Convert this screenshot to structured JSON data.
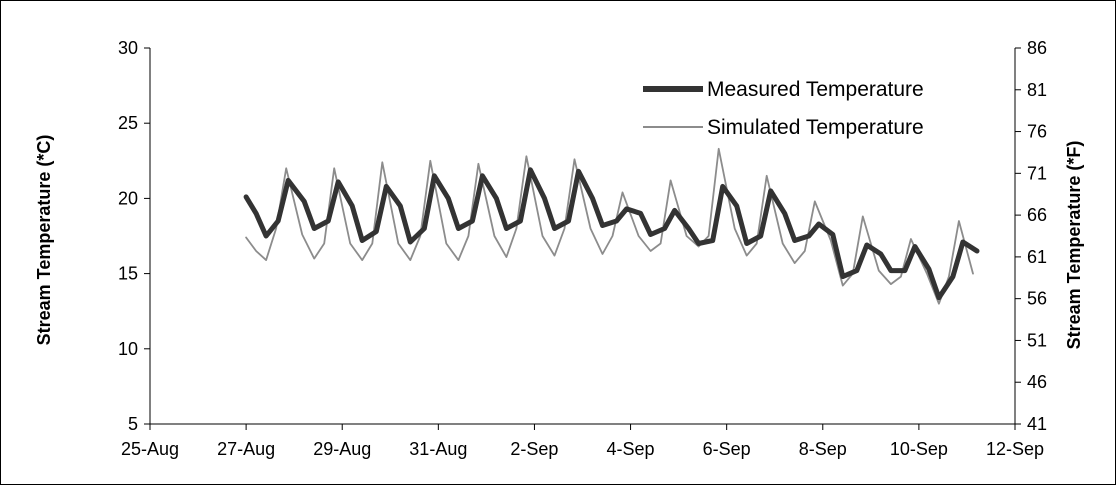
{
  "chart_data": {
    "type": "line",
    "title": "",
    "ylabel": "Stream Temperature (*C)",
    "y2label": "Stream Temperature (*F)",
    "xlim_days": [
      0,
      18
    ],
    "ylim": [
      5,
      30
    ],
    "y2lim": [
      41,
      86
    ],
    "grid": false,
    "legend_position": "top-right",
    "x_ticks": [
      "25-Aug",
      "27-Aug",
      "29-Aug",
      "31-Aug",
      "2-Sep",
      "4-Sep",
      "6-Sep",
      "8-Sep",
      "10-Sep",
      "12-Sep"
    ],
    "y_ticks": [
      "5",
      "10",
      "15",
      "20",
      "25",
      "30"
    ],
    "y2_ticks": [
      "41",
      "46",
      "51",
      "56",
      "61",
      "66",
      "71",
      "76",
      "81",
      "86"
    ],
    "colors": {
      "measured": "#333333",
      "simulated": "#8c8c8c"
    },
    "series": [
      {
        "name": "Measured Temperature",
        "x": [
          "27-Aug 00:00",
          "27-Aug 05:00",
          "27-Aug 10:00",
          "27-Aug 16:00",
          "27-Aug 21:00",
          "28-Aug 05:00",
          "28-Aug 10:00",
          "28-Aug 17:00",
          "28-Aug 22:00",
          "29-Aug 05:00",
          "29-Aug 10:00",
          "29-Aug 17:00",
          "29-Aug 22:00",
          "30-Aug 05:00",
          "30-Aug 10:00",
          "30-Aug 17:00",
          "30-Aug 22:00",
          "31-Aug 05:00",
          "31-Aug 10:00",
          "31-Aug 17:00",
          "31-Aug 22:00",
          "1-Sep 05:00",
          "1-Sep 10:00",
          "1-Sep 17:00",
          "1-Sep 22:00",
          "2-Sep 05:00",
          "2-Sep 10:00",
          "2-Sep 17:00",
          "2-Sep 22:00",
          "3-Sep 05:00",
          "3-Sep 10:00",
          "3-Sep 17:00",
          "3-Sep 22:00",
          "4-Sep 05:00",
          "4-Sep 10:00",
          "4-Sep 17:00",
          "4-Sep 22:00",
          "5-Sep 05:00",
          "5-Sep 10:00",
          "5-Sep 17:00",
          "5-Sep 22:00",
          "6-Sep 05:00",
          "6-Sep 10:00",
          "6-Sep 17:00",
          "6-Sep 22:00",
          "7-Sep 05:00",
          "7-Sep 10:00",
          "7-Sep 17:00",
          "7-Sep 22:00",
          "8-Sep 05:00",
          "8-Sep 10:00",
          "8-Sep 17:00",
          "8-Sep 22:00",
          "9-Sep 05:00",
          "9-Sep 10:00",
          "9-Sep 17:00",
          "9-Sep 22:00",
          "10-Sep 05:00",
          "10-Sep 10:00",
          "10-Sep 17:00",
          "10-Sep 22:00",
          "11-Sep 05:00"
        ],
        "values": [
          20.1,
          19.0,
          17.5,
          18.5,
          21.2,
          19.8,
          18.0,
          18.5,
          21.1,
          19.5,
          17.2,
          17.8,
          20.8,
          19.5,
          17.1,
          18.0,
          21.5,
          20.0,
          18.0,
          18.5,
          21.5,
          20.0,
          18.0,
          18.5,
          21.9,
          20.0,
          18.0,
          18.5,
          21.8,
          20.0,
          18.2,
          18.5,
          19.3,
          19.0,
          17.6,
          18.0,
          19.2,
          18.0,
          17.0,
          17.2,
          20.8,
          19.5,
          17.0,
          17.5,
          20.5,
          19.0,
          17.2,
          17.5,
          18.3,
          17.6,
          14.8,
          15.2,
          16.9,
          16.3,
          15.2,
          15.2,
          16.8,
          15.3,
          13.4,
          14.8,
          17.1,
          16.5
        ]
      },
      {
        "name": "Simulated Temperature",
        "x": [
          "27-Aug 00:00",
          "27-Aug 05:00",
          "27-Aug 10:00",
          "27-Aug 15:00",
          "27-Aug 20:00",
          "28-Aug 04:00",
          "28-Aug 10:00",
          "28-Aug 15:00",
          "28-Aug 20:00",
          "29-Aug 04:00",
          "29-Aug 10:00",
          "29-Aug 15:00",
          "29-Aug 20:00",
          "30-Aug 04:00",
          "30-Aug 10:00",
          "30-Aug 15:00",
          "30-Aug 20:00",
          "31-Aug 04:00",
          "31-Aug 10:00",
          "31-Aug 15:00",
          "31-Aug 20:00",
          "1-Sep 04:00",
          "1-Sep 10:00",
          "1-Sep 15:00",
          "1-Sep 20:00",
          "2-Sep 04:00",
          "2-Sep 10:00",
          "2-Sep 15:00",
          "2-Sep 20:00",
          "3-Sep 04:00",
          "3-Sep 10:00",
          "3-Sep 15:00",
          "3-Sep 20:00",
          "4-Sep 04:00",
          "4-Sep 10:00",
          "4-Sep 15:00",
          "4-Sep 20:00",
          "5-Sep 04:00",
          "5-Sep 10:00",
          "5-Sep 15:00",
          "5-Sep 20:00",
          "6-Sep 04:00",
          "6-Sep 10:00",
          "6-Sep 15:00",
          "6-Sep 20:00",
          "7-Sep 04:00",
          "7-Sep 10:00",
          "7-Sep 15:00",
          "7-Sep 20:00",
          "8-Sep 04:00",
          "8-Sep 10:00",
          "8-Sep 15:00",
          "8-Sep 20:00",
          "9-Sep 04:00",
          "9-Sep 10:00",
          "9-Sep 15:00",
          "9-Sep 20:00",
          "10-Sep 04:00",
          "10-Sep 10:00",
          "10-Sep 15:00",
          "10-Sep 20:00",
          "11-Sep 03:00"
        ],
        "values": [
          17.4,
          16.5,
          15.9,
          18.0,
          22.0,
          17.6,
          16.0,
          17.0,
          22.0,
          17.0,
          15.9,
          17.0,
          22.4,
          17.0,
          15.9,
          17.5,
          22.5,
          17.0,
          15.9,
          17.5,
          22.3,
          17.5,
          16.1,
          18.0,
          22.8,
          17.5,
          16.2,
          18.0,
          22.6,
          18.0,
          16.3,
          17.5,
          20.4,
          17.5,
          16.5,
          17.0,
          21.2,
          17.5,
          16.8,
          17.5,
          23.3,
          18.0,
          16.2,
          17.0,
          21.5,
          17.0,
          15.7,
          16.5,
          19.8,
          17.2,
          14.2,
          15.0,
          18.8,
          15.2,
          14.3,
          14.8,
          17.3,
          15.0,
          13.0,
          14.8,
          18.5,
          15.0
        ]
      }
    ]
  }
}
